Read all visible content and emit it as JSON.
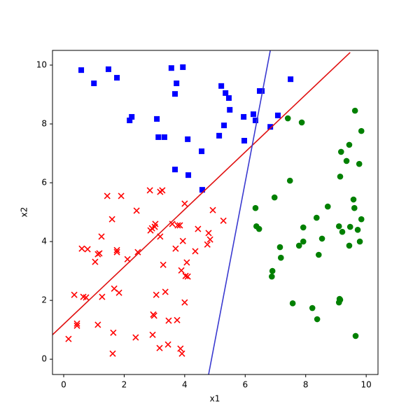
{
  "chart_data": {
    "type": "scatter",
    "xlabel": "x1",
    "ylabel": "x2",
    "xlim": [
      -0.37,
      10.39
    ],
    "ylim": [
      -0.52,
      10.5
    ],
    "xticks": [
      0,
      2,
      4,
      6,
      8,
      10
    ],
    "yticks": [
      0,
      2,
      4,
      6,
      8,
      10
    ],
    "series": [
      {
        "style": "square",
        "color": "#0000ff",
        "x": [
          0.58,
          1.0,
          1.48,
          1.76,
          2.18,
          2.25,
          3.08,
          3.13,
          3.33,
          3.56,
          3.94,
          3.73,
          3.68,
          4.1,
          3.68,
          4.12,
          4.56,
          4.58,
          5.21,
          5.35,
          5.46,
          5.49,
          5.3,
          5.14,
          5.97,
          5.95,
          6.27,
          6.34,
          6.48,
          6.55,
          6.83,
          7.08,
          7.5
        ],
        "values": [
          9.83,
          9.38,
          9.86,
          9.57,
          8.12,
          8.24,
          8.17,
          7.55,
          7.55,
          9.9,
          9.93,
          9.38,
          9.02,
          7.48,
          6.45,
          6.26,
          7.07,
          5.76,
          9.29,
          9.05,
          8.88,
          8.48,
          7.95,
          7.6,
          7.43,
          8.24,
          8.33,
          8.12,
          9.12,
          9.12,
          7.9,
          8.29,
          9.52
        ]
      },
      {
        "style": "cross",
        "color": "#ff0000",
        "x": [
          0.16,
          0.35,
          0.44,
          0.44,
          0.6,
          0.65,
          0.74,
          0.79,
          1.04,
          1.13,
          1.18,
          1.13,
          1.27,
          1.25,
          1.44,
          1.6,
          1.64,
          1.62,
          1.67,
          1.76,
          1.76,
          1.83,
          1.9,
          2.11,
          2.41,
          2.38,
          2.45,
          2.85,
          2.87,
          2.92,
          2.94,
          3.01,
          2.96,
          2.99,
          3.06,
          3.03,
          3.17,
          3.19,
          3.26,
          3.19,
          3.29,
          3.36,
          3.45,
          3.47,
          3.59,
          3.7,
          3.75,
          3.77,
          3.84,
          3.86,
          3.91,
          3.89,
          3.94,
          4.0,
          4.0,
          4.03,
          4.1,
          4.07,
          4.35,
          4.44,
          4.75,
          4.79,
          4.84,
          4.93,
          5.28
        ],
        "values": [
          0.69,
          2.19,
          1.21,
          1.14,
          3.76,
          2.12,
          2.1,
          3.74,
          3.31,
          3.57,
          3.6,
          1.17,
          2.12,
          4.17,
          5.55,
          4.76,
          0.9,
          0.19,
          2.4,
          3.71,
          3.64,
          2.26,
          5.55,
          3.4,
          5.05,
          0.74,
          3.64,
          5.74,
          4.38,
          4.45,
          0.83,
          4.5,
          1.52,
          1.48,
          2.19,
          4.6,
          0.38,
          5.69,
          5.74,
          4.17,
          3.21,
          2.29,
          0.5,
          1.31,
          4.6,
          3.76,
          1.33,
          4.55,
          4.55,
          0.36,
          0.19,
          3.02,
          4.02,
          1.93,
          5.29,
          2.83,
          2.81,
          3.29,
          3.67,
          4.43,
          3.9,
          4.29,
          4.07,
          5.07,
          4.71
        ]
      },
      {
        "style": "circle",
        "color": "#008000",
        "x": [
          6.34,
          6.37,
          6.46,
          6.97,
          6.9,
          6.88,
          7.15,
          7.18,
          7.41,
          7.48,
          7.57,
          7.78,
          7.87,
          7.92,
          7.92,
          8.22,
          8.36,
          8.38,
          8.43,
          8.54,
          8.73,
          9.1,
          9.1,
          9.12,
          9.14,
          9.14,
          9.17,
          9.21,
          9.35,
          9.44,
          9.47,
          9.44,
          9.58,
          9.61,
          9.63,
          9.65,
          9.72,
          9.77,
          9.79,
          9.84,
          9.84
        ],
        "values": [
          5.14,
          4.52,
          4.43,
          5.5,
          3.0,
          2.81,
          3.81,
          3.45,
          8.19,
          6.07,
          1.9,
          3.86,
          8.05,
          4.48,
          4.0,
          1.74,
          4.81,
          1.36,
          3.55,
          4.1,
          5.19,
          4.52,
          1.93,
          2.05,
          2.02,
          6.21,
          7.05,
          4.33,
          6.74,
          7.29,
          4.5,
          3.86,
          5.43,
          5.14,
          8.45,
          0.79,
          4.4,
          6.64,
          4.0,
          7.76,
          4.76
        ]
      },
      {
        "style": "line",
        "color": "#e01010",
        "x": [
          -0.37,
          9.47
        ],
        "values": [
          0.83,
          10.43
        ]
      },
      {
        "style": "line",
        "color": "#3a3ad0",
        "x": [
          4.79,
          6.83
        ],
        "values": [
          -0.52,
          10.5
        ]
      }
    ]
  }
}
